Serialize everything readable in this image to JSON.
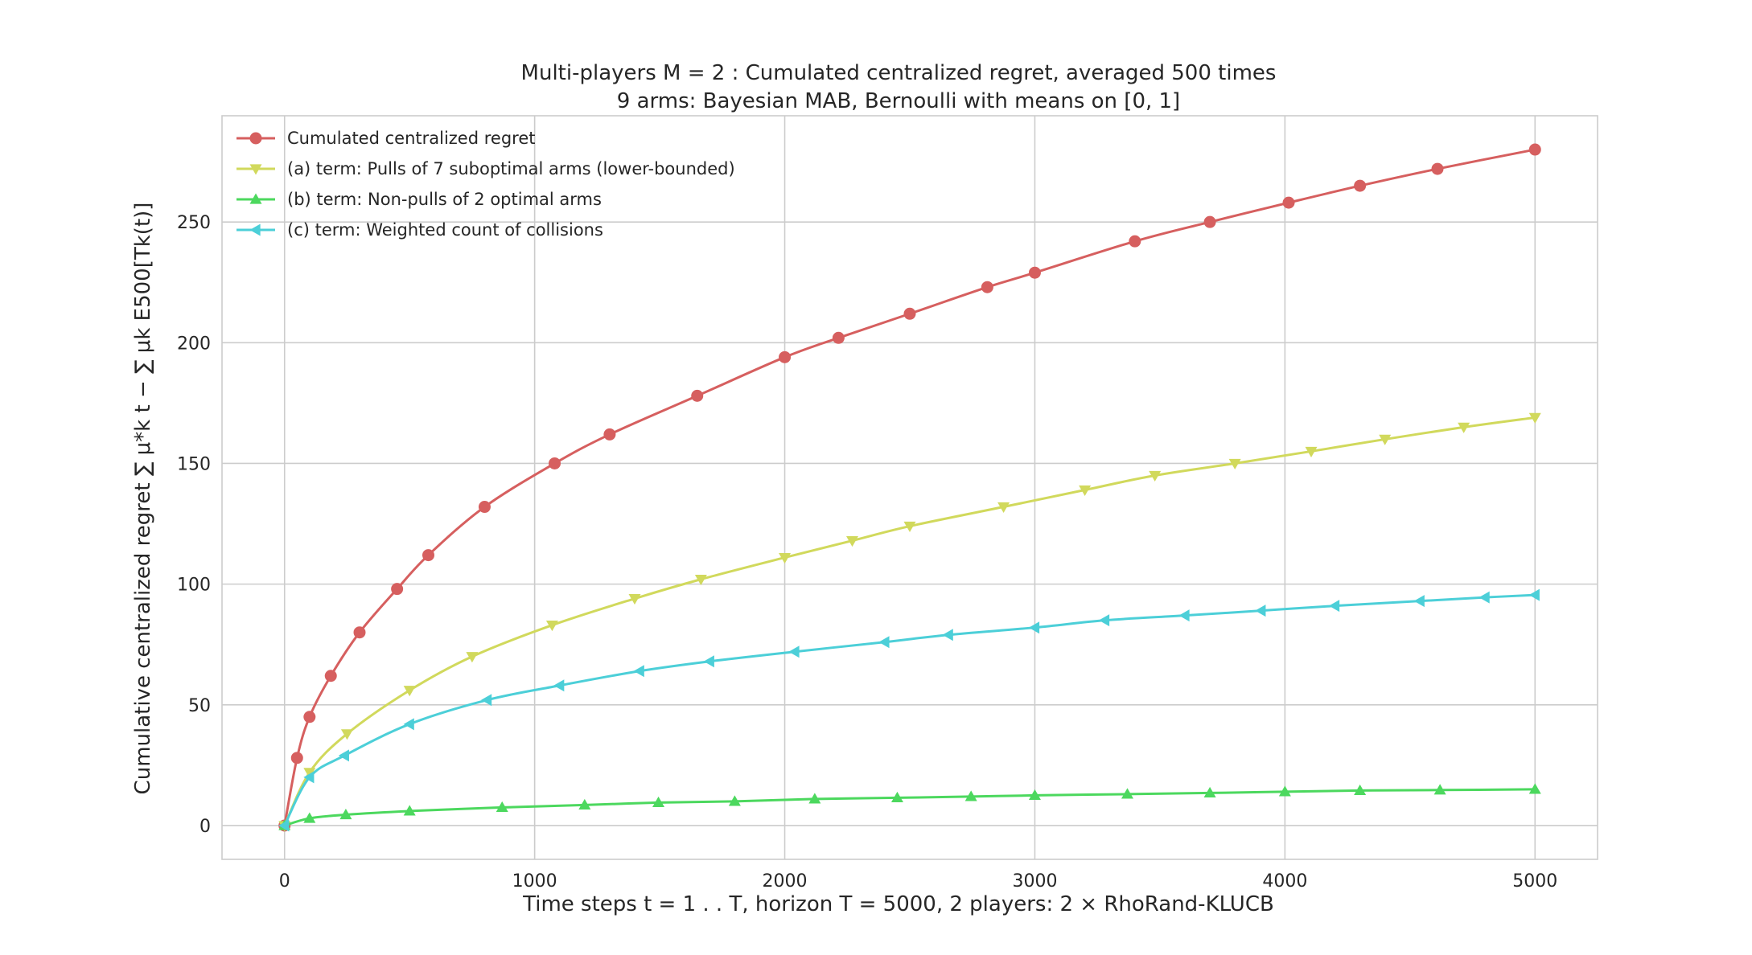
{
  "chart_data": {
    "type": "line",
    "title": "Multi-players M = 2 : Cumulated centralized regret, averaged 500 times",
    "subtitle": "9 arms: Bayesian MAB, Bernoulli with means on [0, 1]",
    "xlabel": "Time steps t = 1 . . T, horizon T = 5000, 2 players: 2 × RhoRand-KLUCB",
    "ylabel": "Cumulative centralized regret ∑ μ*k t − ∑ μk E500[Tk(t)]",
    "xlim": [
      -250,
      5250
    ],
    "ylim": [
      -14,
      294
    ],
    "xticks": [
      0,
      1000,
      2000,
      3000,
      4000,
      5000
    ],
    "yticks": [
      0,
      50,
      100,
      150,
      200,
      250
    ],
    "grid": true,
    "legend_position": "top-left",
    "series": [
      {
        "name": "Cumulated centralized regret",
        "color": "#d65f5f",
        "marker": "circle",
        "x": [
          0,
          50,
          100,
          185,
          300,
          450,
          575,
          800,
          1080,
          1300,
          1650,
          2000,
          2215,
          2500,
          2810,
          3000,
          3400,
          3700,
          4015,
          4300,
          4610,
          5000
        ],
        "y": [
          0,
          28,
          45,
          62,
          80,
          98,
          112,
          132,
          150,
          162,
          178,
          194,
          202,
          212,
          223,
          229,
          242,
          250,
          258,
          265,
          272,
          280
        ]
      },
      {
        "name": "(a) term: Pulls of 7 suboptimal arms (lower-bounded)",
        "color": "#d1d95c",
        "marker": "triangle-down",
        "x": [
          0,
          100,
          250,
          500,
          750,
          1070,
          1400,
          1665,
          2000,
          2270,
          2500,
          2875,
          3200,
          3480,
          3800,
          4105,
          4400,
          4715,
          5000
        ],
        "y": [
          0,
          22,
          38,
          56,
          70,
          83,
          94,
          102,
          111,
          118,
          124,
          132,
          139,
          145,
          150,
          155,
          160,
          165,
          169
        ]
      },
      {
        "name": "(b) term: Non-pulls of 2 optimal arms",
        "color": "#4cd85e",
        "marker": "triangle-up",
        "x": [
          0,
          100,
          245,
          500,
          870,
          1200,
          1495,
          1800,
          2120,
          2450,
          2745,
          3000,
          3370,
          3700,
          4000,
          4300,
          4620,
          5000
        ],
        "y": [
          0,
          3,
          4.5,
          6,
          7.5,
          8.5,
          9.5,
          10,
          11,
          11.5,
          12,
          12.5,
          13,
          13.5,
          14,
          14.5,
          14.7,
          15
        ]
      },
      {
        "name": "(c) term: Weighted count of collisions",
        "color": "#4ccfd8",
        "marker": "triangle-left",
        "x": [
          0,
          100,
          240,
          500,
          810,
          1100,
          1420,
          1700,
          2040,
          2400,
          2655,
          3000,
          3280,
          3600,
          3905,
          4200,
          4540,
          4800,
          5000
        ],
        "y": [
          0,
          20,
          29,
          42,
          52,
          58,
          64,
          68,
          72,
          76,
          79,
          82,
          85,
          87,
          89,
          91,
          93,
          94.5,
          95.5
        ]
      }
    ]
  }
}
